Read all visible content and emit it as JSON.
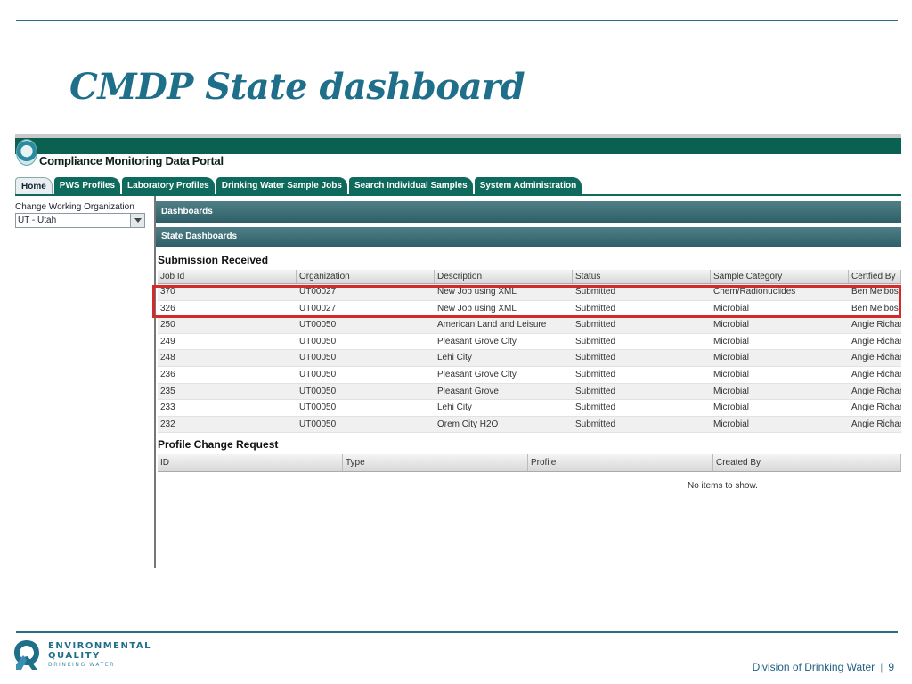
{
  "slide": {
    "title": "CMDP State dashboard",
    "footer_division": "Division of Drinking Water",
    "footer_separator": "|",
    "page_number": "9"
  },
  "branding": {
    "deq_line1": "ENVIRONMENTAL",
    "deq_line2": "QUALITY",
    "deq_line3": "DRINKING WATER"
  },
  "app": {
    "title": "Compliance Monitoring Data Portal",
    "tabs": [
      {
        "label": "Home",
        "active": true
      },
      {
        "label": "PWS Profiles",
        "active": false
      },
      {
        "label": "Laboratory Profiles",
        "active": false
      },
      {
        "label": "Drinking Water Sample Jobs",
        "active": false
      },
      {
        "label": "Search Individual Samples",
        "active": false
      },
      {
        "label": "System Administration",
        "active": false
      }
    ],
    "sidebar": {
      "org_label": "Change Working Organization",
      "org_value": "UT - Utah"
    },
    "dashboards_bar": "Dashboards",
    "state_dashboards_bar": "State Dashboards",
    "submission": {
      "title": "Submission Received",
      "columns": [
        "Job Id",
        "Organization",
        "Description",
        "Status",
        "Sample Category",
        "Certfied By"
      ],
      "rows": [
        [
          "370",
          "UT00027",
          "New Job using XML",
          "Submitted",
          "Chem/Radionuclides",
          "Ben Melbos"
        ],
        [
          "326",
          "UT00027",
          "New Job using XML",
          "Submitted",
          "Microbial",
          "Ben Melbos"
        ],
        [
          "250",
          "UT00050",
          "American Land and Leisure",
          "Submitted",
          "Microbial",
          "Angie Richard"
        ],
        [
          "249",
          "UT00050",
          "Pleasant Grove City",
          "Submitted",
          "Microbial",
          "Angie Richard"
        ],
        [
          "248",
          "UT00050",
          "Lehi City",
          "Submitted",
          "Microbial",
          "Angie Richard"
        ],
        [
          "236",
          "UT00050",
          "Pleasant Grove City",
          "Submitted",
          "Microbial",
          "Angie Richard"
        ],
        [
          "235",
          "UT00050",
          "Pleasant Grove",
          "Submitted",
          "Microbial",
          "Angie Richard"
        ],
        [
          "233",
          "UT00050",
          "Lehi City",
          "Submitted",
          "Microbial",
          "Angie Richard"
        ],
        [
          "232",
          "UT00050",
          "Orem City H2O",
          "Submitted",
          "Microbial",
          "Angie Richard"
        ]
      ]
    },
    "profile_change": {
      "title": "Profile Change Request",
      "columns": [
        "ID",
        "Type",
        "Profile",
        "Created By"
      ],
      "empty_text": "No items to show."
    }
  },
  "colors": {
    "header_green": "#0a6152",
    "accent_blue": "#1f6f8b",
    "highlight_red": "#d42a2a"
  }
}
